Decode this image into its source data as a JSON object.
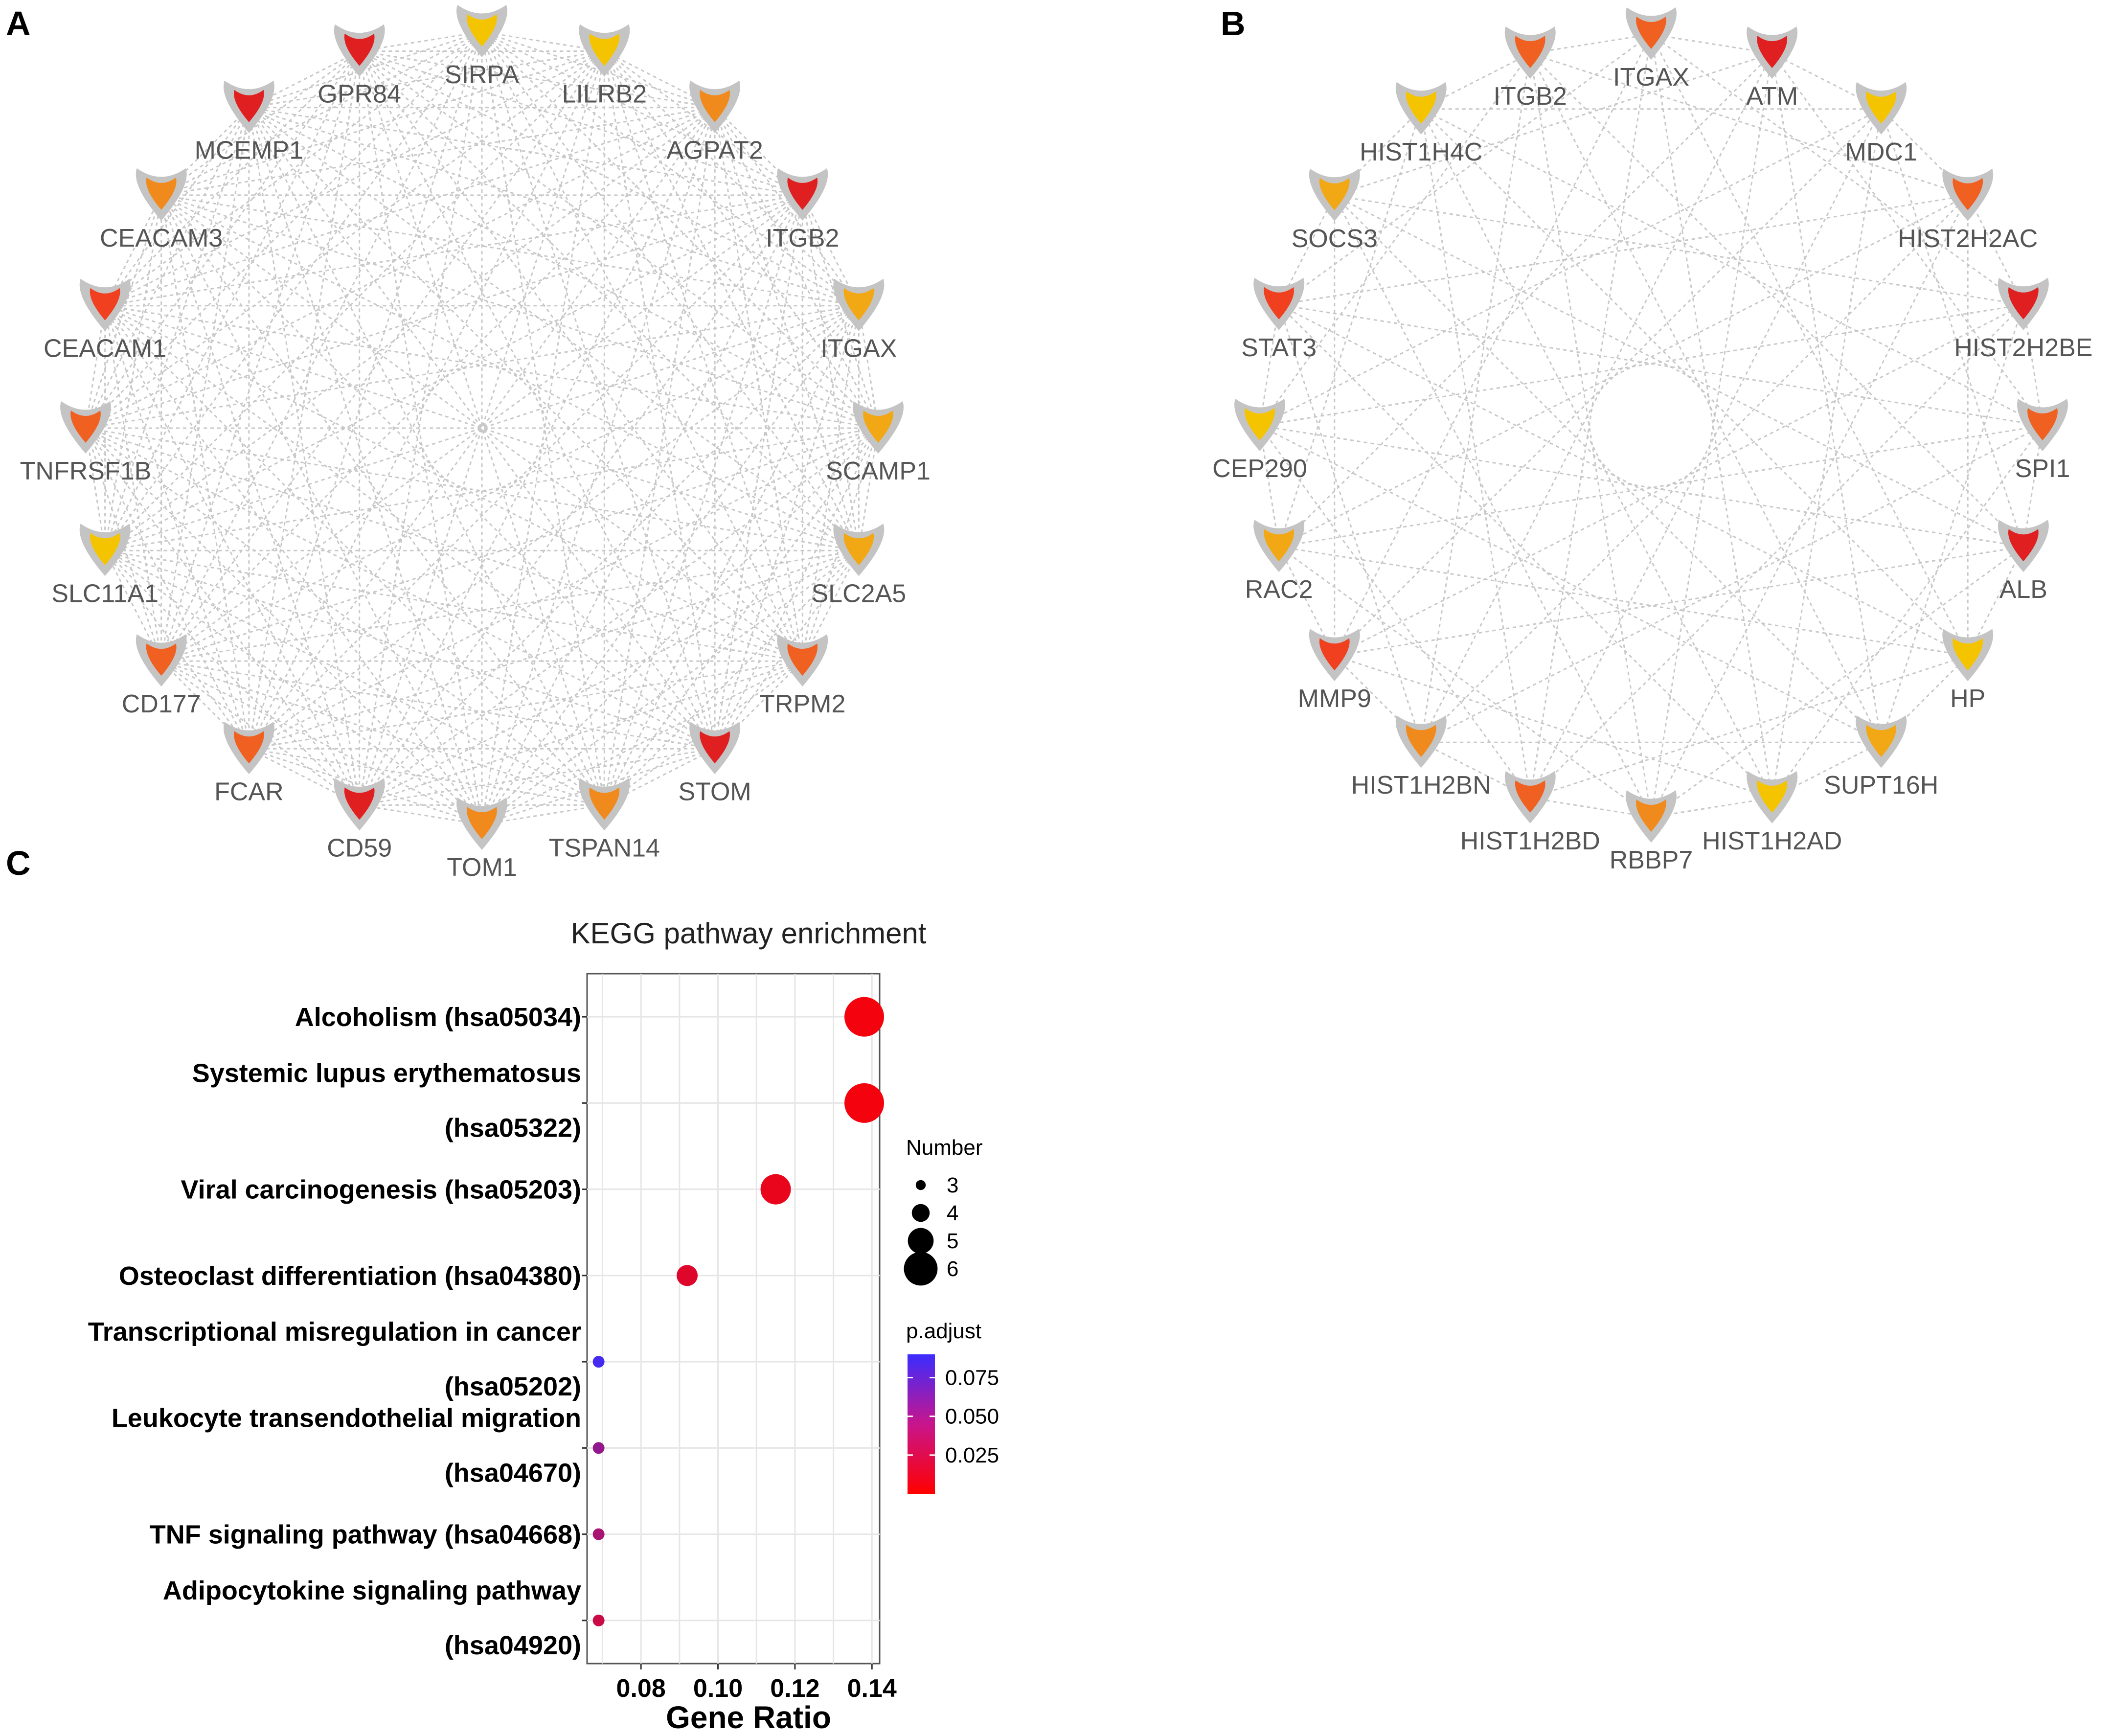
{
  "panels": {
    "a": {
      "letter": "A"
    },
    "b": {
      "letter": "B"
    },
    "c": {
      "letter": "C"
    }
  },
  "network_a": {
    "nodes": [
      {
        "label": "SIRPA",
        "color": "#f5c400"
      },
      {
        "label": "LILRB2",
        "color": "#f5c400"
      },
      {
        "label": "AGPAT2",
        "color": "#f08a1c"
      },
      {
        "label": "ITGB2",
        "color": "#e02020"
      },
      {
        "label": "ITGAX",
        "color": "#f2a814"
      },
      {
        "label": "SCAMP1",
        "color": "#f2a814"
      },
      {
        "label": "SLC2A5",
        "color": "#f2a814"
      },
      {
        "label": "TRPM2",
        "color": "#f06020"
      },
      {
        "label": "STOM",
        "color": "#e02020"
      },
      {
        "label": "TSPAN14",
        "color": "#f08a1c"
      },
      {
        "label": "TOM1",
        "color": "#f08a1c"
      },
      {
        "label": "CD59",
        "color": "#e02020"
      },
      {
        "label": "FCAR",
        "color": "#f06020"
      },
      {
        "label": "CD177",
        "color": "#f06020"
      },
      {
        "label": "SLC11A1",
        "color": "#f5c400"
      },
      {
        "label": "TNFRSF1B",
        "color": "#f06020"
      },
      {
        "label": "CEACAM1",
        "color": "#f04020"
      },
      {
        "label": "CEACAM3",
        "color": "#f08a1c"
      },
      {
        "label": "MCEMP1",
        "color": "#e02020"
      },
      {
        "label": "GPR84",
        "color": "#e02020"
      }
    ]
  },
  "network_b": {
    "nodes": [
      {
        "label": "ITGAX",
        "color": "#f06020"
      },
      {
        "label": "ATM",
        "color": "#e02020"
      },
      {
        "label": "MDC1",
        "color": "#f5c400"
      },
      {
        "label": "HIST2H2AC",
        "color": "#f06020"
      },
      {
        "label": "HIST2H2BE",
        "color": "#e02020"
      },
      {
        "label": "SPI1",
        "color": "#f06020"
      },
      {
        "label": "ALB",
        "color": "#e02020"
      },
      {
        "label": "HP",
        "color": "#f5c400"
      },
      {
        "label": "SUPT16H",
        "color": "#f2a814"
      },
      {
        "label": "HIST1H2AD",
        "color": "#f5c400"
      },
      {
        "label": "RBBP7",
        "color": "#f08a1c"
      },
      {
        "label": "HIST1H2BD",
        "color": "#f06020"
      },
      {
        "label": "HIST1H2BN",
        "color": "#f08a1c"
      },
      {
        "label": "MMP9",
        "color": "#f04020"
      },
      {
        "label": "RAC2",
        "color": "#f2a814"
      },
      {
        "label": "CEP290",
        "color": "#f5c400"
      },
      {
        "label": "STAT3",
        "color": "#f04020"
      },
      {
        "label": "SOCS3",
        "color": "#f2a814"
      },
      {
        "label": "HIST1H4C",
        "color": "#f5c400"
      },
      {
        "label": "ITGB2",
        "color": "#f06020"
      }
    ]
  },
  "chart_data": {
    "type": "scatter",
    "title": "KEGG pathway enrichment",
    "xlabel": "Gene Ratio",
    "ylabel": "",
    "xlim": [
      0.066,
      0.142
    ],
    "xticks": [
      0.08,
      0.1,
      0.12,
      0.14
    ],
    "xtick_labels": [
      "0.08",
      "0.10",
      "0.12",
      "0.14"
    ],
    "grid": true,
    "categories": [
      {
        "lines": [
          "Alcoholism (hsa05034)"
        ],
        "gene_ratio": 0.138,
        "number": 6,
        "p_adjust": 0.005
      },
      {
        "lines": [
          "Systemic lupus erythematosus",
          "(hsa05322)"
        ],
        "gene_ratio": 0.138,
        "number": 6,
        "p_adjust": 0.005
      },
      {
        "lines": [
          "Viral carcinogenesis (hsa05203)"
        ],
        "gene_ratio": 0.115,
        "number": 5,
        "p_adjust": 0.01
      },
      {
        "lines": [
          "Osteoclast differentiation (hsa04380)"
        ],
        "gene_ratio": 0.092,
        "number": 4,
        "p_adjust": 0.015
      },
      {
        "lines": [
          "Transcriptional misregulation in cancer",
          "(hsa05202)"
        ],
        "gene_ratio": 0.069,
        "number": 3,
        "p_adjust": 0.085
      },
      {
        "lines": [
          "Leukocyte transendothelial migration",
          "(hsa04670)"
        ],
        "gene_ratio": 0.069,
        "number": 3,
        "p_adjust": 0.05
      },
      {
        "lines": [
          "TNF signaling pathway (hsa04668)"
        ],
        "gene_ratio": 0.069,
        "number": 3,
        "p_adjust": 0.04
      },
      {
        "lines": [
          "Adipocytokine signaling pathway",
          "(hsa04920)"
        ],
        "gene_ratio": 0.069,
        "number": 3,
        "p_adjust": 0.025
      }
    ],
    "legend": {
      "size_title": "Number",
      "size_entries": [
        {
          "label": "3",
          "value": 3
        },
        {
          "label": "4",
          "value": 4
        },
        {
          "label": "5",
          "value": 5
        },
        {
          "label": "6",
          "value": 6
        }
      ],
      "color_title": "p.adjust",
      "color_ticks": [
        {
          "label": "0.075",
          "value": 0.075
        },
        {
          "label": "0.050",
          "value": 0.05
        },
        {
          "label": "0.025",
          "value": 0.025
        }
      ],
      "color_range": [
        0.0,
        0.09
      ],
      "color_low": "#ff0000",
      "color_high": "#3b2cff"
    }
  }
}
